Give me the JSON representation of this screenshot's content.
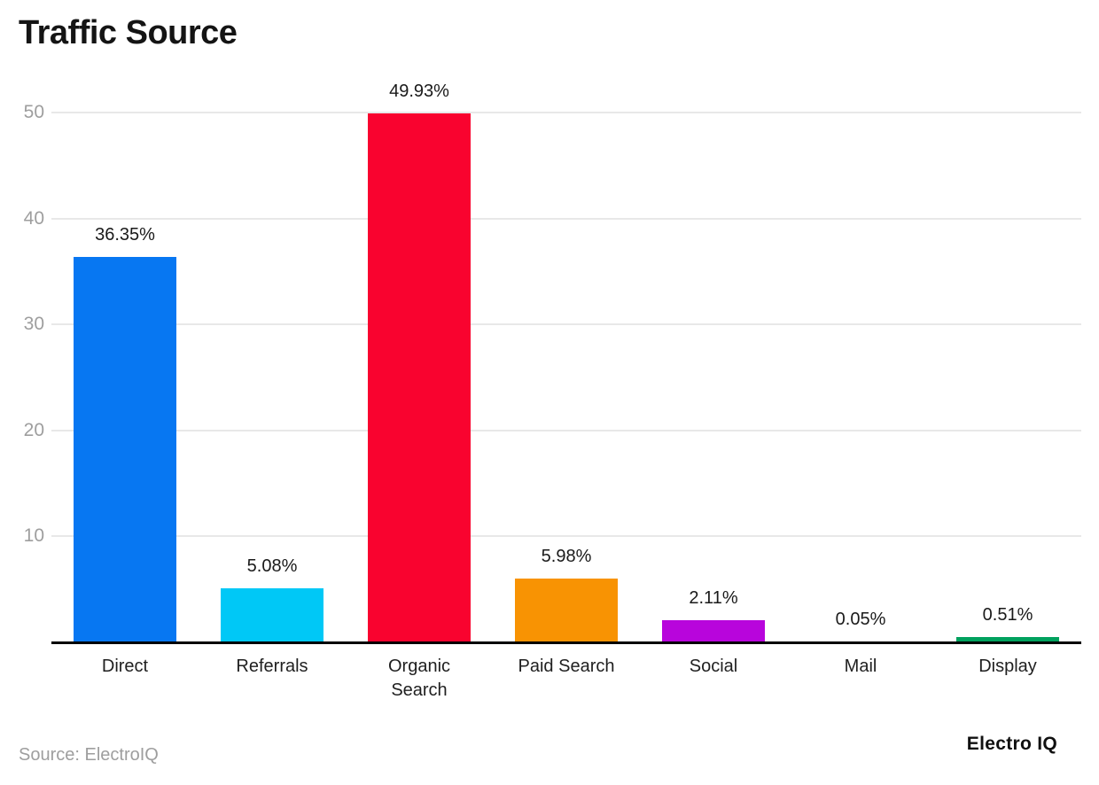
{
  "chart_data": {
    "type": "bar",
    "title": "Traffic Source",
    "categories": [
      "Direct",
      "Referrals",
      "Organic Search",
      "Paid Search",
      "Social",
      "Mail",
      "Display"
    ],
    "values": [
      36.35,
      5.08,
      49.93,
      5.98,
      2.11,
      0.05,
      0.51
    ],
    "value_labels": [
      "36.35%",
      "5.08%",
      "49.93%",
      "5.98%",
      "2.11%",
      "0.05%",
      "0.51%"
    ],
    "colors": [
      "#0777F2",
      "#00C8F6",
      "#F9032F",
      "#F89303",
      "#B805DC",
      "#FFD400",
      "#01A15E"
    ],
    "unit": "%",
    "xlabel": "",
    "ylabel": "",
    "yticks": [
      10,
      20,
      30,
      40,
      50
    ],
    "ylim": [
      0,
      50
    ],
    "grid": true,
    "legend": false,
    "tick_color": "#9e9e9e",
    "gridline_color": "#e8e8e8",
    "axis_line_color": "#000000"
  },
  "footer": {
    "source": "Source: ElectroIQ",
    "brand": "Electro IQ"
  }
}
